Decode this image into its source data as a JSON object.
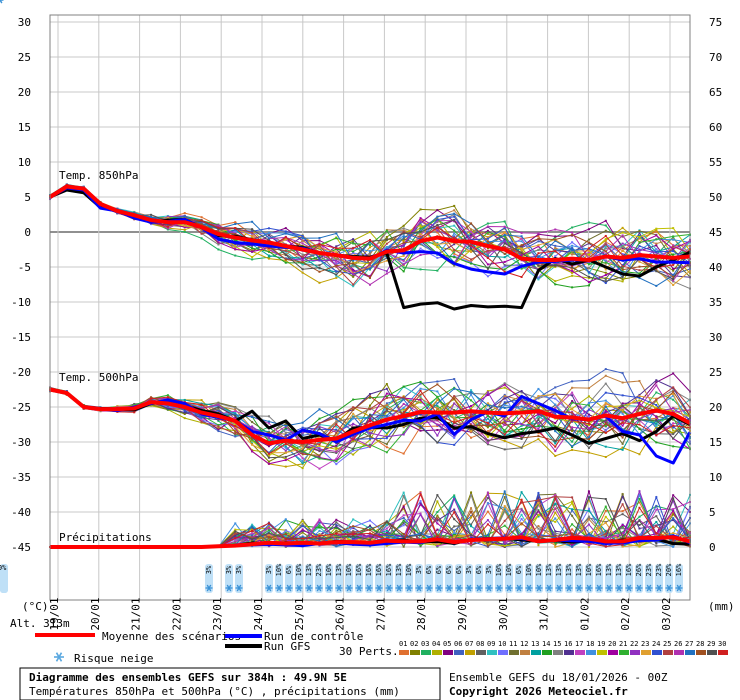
{
  "chart_data": {
    "type": "line",
    "title": "Diagramme des ensembles GEFS sur 384h : 49.9N 5E",
    "subtitle": "Températures 850hPa et 500hPa (°C) , précipitations (mm)",
    "run_info": "Ensemble GEFS du 18/01/2026 - 00Z",
    "copyright": "Copyright 2026 Meteociel.fr",
    "altitude": "Alt. 313m",
    "left_axis_unit": "(°C)",
    "right_axis_unit": "(mm)",
    "left_ticks": [
      30,
      25,
      20,
      15,
      10,
      5,
      0,
      -5,
      -10,
      -15,
      -20,
      -25,
      -30,
      -35,
      -40,
      -45
    ],
    "right_ticks": [
      75,
      70,
      65,
      60,
      55,
      50,
      45,
      40,
      35,
      30,
      25,
      20,
      15,
      10,
      5,
      0
    ],
    "ylim_left": [
      -45,
      30
    ],
    "ylim_right": [
      0,
      75
    ],
    "x_dates": [
      "19/01",
      "20/01",
      "21/01",
      "22/01",
      "23/01",
      "24/01",
      "25/01",
      "26/01",
      "27/01",
      "28/01",
      "29/01",
      "30/01",
      "31/01",
      "01/02",
      "02/02",
      "03/02"
    ],
    "panel_labels": [
      "Temp. 850hPa",
      "Temp. 500hPa",
      "Précipitations"
    ],
    "legend": {
      "mean": "Moyenne des scénarios",
      "control": "Run de contrôle",
      "gfs": "Run GFS",
      "snow": "Risque neige",
      "perts_label": "30 Perts.",
      "pert_numbers": [
        "01",
        "02",
        "03",
        "04",
        "05",
        "06",
        "07",
        "08",
        "09",
        "10",
        "11",
        "12",
        "13",
        "14",
        "15",
        "16",
        "17",
        "18",
        "19",
        "20",
        "21",
        "22",
        "23",
        "24",
        "25",
        "26",
        "27",
        "28",
        "29",
        "30"
      ],
      "pert_colors": [
        "#e07030",
        "#808000",
        "#20b060",
        "#b0b000",
        "#800080",
        "#4060c0",
        "#c0a000",
        "#606060",
        "#30c0c0",
        "#7070ff",
        "#707030",
        "#c08040",
        "#00a0a0",
        "#20a020",
        "#808080",
        "#503090",
        "#c040c0",
        "#4090e0",
        "#c0c000",
        "#a000a0",
        "#30b030",
        "#9030c0",
        "#e0a030",
        "#3050d0",
        "#b04040",
        "#b030b0",
        "#2070c0",
        "#a05020",
        "#505050",
        "#d02020"
      ]
    },
    "snow_risk": {
      "labels": [
        "3%",
        "3%",
        "3%",
        "3%",
        "10%",
        "6%",
        "10%",
        "13%",
        "23%",
        "10%",
        "13%",
        "10%",
        "16%",
        "16%",
        "16%",
        "16%",
        "13%",
        "10%",
        "3%",
        "6%",
        "6%",
        "6%",
        "6%",
        "3%",
        "6%",
        "3%",
        "10%",
        "10%",
        "6%",
        "10%",
        "10%",
        "13%",
        "13%",
        "13%",
        "13%",
        "10%",
        "16%",
        "13%",
        "13%",
        "16%",
        "26%",
        "23%",
        "23%",
        "20%",
        "16%",
        "13%",
        "10%"
      ]
    },
    "series": [
      {
        "name": "Moyenne des scénarios",
        "color": "#ff0000",
        "t850": [
          5,
          6.5,
          6.2,
          4,
          3,
          2.4,
          1.7,
          1.4,
          1.4,
          0.7,
          -0.3,
          -0.8,
          -1.2,
          -1.5,
          -2,
          -2.5,
          -3,
          -3.3,
          -3.7,
          -3.8,
          -2.8,
          -2.6,
          -1.3,
          -0.8,
          -1.3,
          -1.4,
          -2,
          -2.5,
          -3.8,
          -4,
          -4,
          -3.8,
          -4,
          -3.5,
          -3.7,
          -3.3,
          -3.5,
          -3.7,
          -3.5
        ],
        "t500": [
          -22.5,
          -23,
          -25,
          -25.3,
          -25.3,
          -25.2,
          -24.3,
          -24.5,
          -25,
          -25.8,
          -26.3,
          -27,
          -29,
          -30.2,
          -29.8,
          -30,
          -29.7,
          -29.5,
          -28.5,
          -27.6,
          -26.8,
          -26.3,
          -25.7,
          -25.8,
          -25.8,
          -25.6,
          -25.8,
          -25.9,
          -25.8,
          -25.6,
          -26.4,
          -26.5,
          -26.8,
          -26.2,
          -26.6,
          -26,
          -25.5,
          -26,
          -27.3
        ],
        "precip": [
          0,
          0,
          0,
          0,
          0,
          0,
          0,
          0,
          0,
          0,
          0.1,
          0.2,
          0.4,
          0.6,
          0.5,
          0.6,
          0.5,
          0.7,
          0.7,
          0.6,
          0.9,
          0.8,
          0.8,
          1.1,
          0.7,
          1,
          1.1,
          1.2,
          1.4,
          0.8,
          1,
          1.3,
          1.2,
          0.8,
          0.8,
          1.3,
          1.3,
          1.4,
          0.8
        ]
      },
      {
        "name": "Run de contrôle",
        "color": "#0000ff",
        "t850": [
          5,
          6.3,
          6,
          3.4,
          3,
          2,
          1.4,
          1.5,
          1.8,
          0.6,
          -1,
          -1.5,
          -1.7,
          -2,
          -2.2,
          -2.3,
          -3,
          -3.3,
          -3.7,
          -3.9,
          -2.6,
          -3,
          -2.8,
          -3,
          -4.5,
          -5.3,
          -5.7,
          -6,
          -4.9,
          -4.3,
          -4.2,
          -4,
          -4,
          -3.5,
          -4,
          -3.8,
          -4.3,
          -4.3,
          -4.4
        ],
        "t500": [
          -22.5,
          -23,
          -25,
          -25.3,
          -25.5,
          -25,
          -24.5,
          -24,
          -24.5,
          -26,
          -26.5,
          -27,
          -28.5,
          -29,
          -29.7,
          -28.3,
          -28.8,
          -30,
          -28.9,
          -28,
          -27.5,
          -26.9,
          -27,
          -26,
          -28.9,
          -26.8,
          -25.7,
          -26.3,
          -23.5,
          -24.5,
          -25.5,
          -26.7,
          -26.8,
          -26.3,
          -28.5,
          -29,
          -32,
          -33,
          -28.6
        ],
        "precip": [
          0,
          0,
          0,
          0,
          0,
          0,
          0,
          0,
          0,
          0,
          0.1,
          0.2,
          0.3,
          0.4,
          0.3,
          0.2,
          0.5,
          0.6,
          0.4,
          0.3,
          0.5,
          0.7,
          0.6,
          1.2,
          0.6,
          1.1,
          1.2,
          1.3,
          1.2,
          0.9,
          1,
          0.9,
          0.8,
          0.5,
          0.6,
          0.9,
          1,
          1.6,
          0.6
        ]
      },
      {
        "name": "Run GFS",
        "color": "#000000",
        "t850": [
          5,
          6,
          5.6,
          3.5,
          3,
          2.3,
          1.4,
          1.7,
          1.8,
          0.6,
          -0.5,
          -0.6,
          -1.1,
          -1.5,
          -2,
          -2.2,
          -3,
          -3.3,
          -3.5,
          -3.6,
          -3,
          -10.8,
          -10.3,
          -10.1,
          -11,
          -10.5,
          -10.7,
          -10.6,
          -10.8,
          -5.5,
          -3.8,
          -4.6,
          -4,
          -5,
          -6,
          -6.3,
          -5,
          -4,
          -2.9
        ],
        "t500": [
          -22.5,
          -23,
          -25,
          -25.2,
          -25.3,
          -25.4,
          -24.5,
          -24.2,
          -24.8,
          -25.5,
          -26,
          -27,
          -25.6,
          -28,
          -27,
          -29.5,
          -29,
          -29.8,
          -28,
          -27.9,
          -28,
          -27.5,
          -26.6,
          -26.5,
          -28,
          -27.8,
          -28.8,
          -29.4,
          -28.8,
          -28.5,
          -28,
          -29,
          -30.2,
          -29.5,
          -28.8,
          -29.8,
          -28.5,
          -26.3,
          -27.5
        ],
        "precip": [
          0,
          0,
          0,
          0,
          0,
          0,
          0,
          0,
          0,
          0,
          0.1,
          0.2,
          0.6,
          0.4,
          0.6,
          0.4,
          0.5,
          0.8,
          0.7,
          0.6,
          0.9,
          1,
          0.7,
          0.8,
          0.5,
          1.1,
          1.2,
          1.3,
          1,
          0.8,
          0.9,
          0.7,
          0.9,
          0.6,
          1,
          0.9,
          1.1,
          0.5,
          0.4
        ]
      }
    ]
  }
}
